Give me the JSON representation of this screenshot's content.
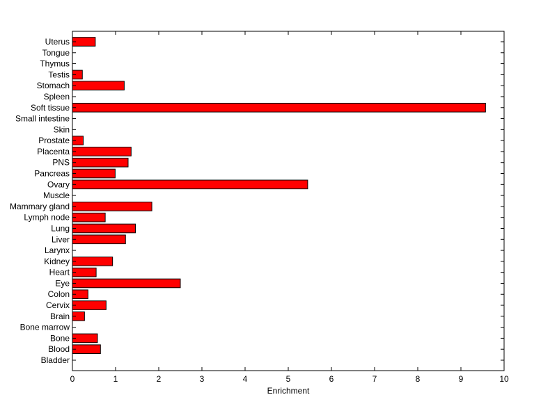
{
  "chart_data": {
    "type": "bar",
    "orientation": "horizontal",
    "title": "",
    "xlabel": "Enrichment",
    "ylabel": "",
    "xlim": [
      0,
      10
    ],
    "xticks": [
      0,
      1,
      2,
      3,
      4,
      5,
      6,
      7,
      8,
      9,
      10
    ],
    "grid": false,
    "bar_color": "#ff0000",
    "edge_color": "#000000",
    "categories": [
      "Bladder",
      "Blood",
      "Bone",
      "Bone marrow",
      "Brain",
      "Cervix",
      "Colon",
      "Eye",
      "Heart",
      "Kidney",
      "Larynx",
      "Liver",
      "Lung",
      "Lymph node",
      "Mammary gland",
      "Muscle",
      "Ovary",
      "Pancreas",
      "PNS",
      "Placenta",
      "Prostate",
      "Skin",
      "Small intestine",
      "Soft tissue",
      "Spleen",
      "Stomach",
      "Testis",
      "Thymus",
      "Tongue",
      "Uterus"
    ],
    "values": [
      0,
      0.65,
      0.58,
      0,
      0.28,
      0.78,
      0.36,
      2.5,
      0.55,
      0.93,
      0,
      1.23,
      1.46,
      0.76,
      1.84,
      0,
      5.45,
      0.99,
      1.29,
      1.36,
      0.25,
      0,
      0,
      9.57,
      0,
      1.2,
      0.23,
      0,
      0,
      0.53
    ]
  }
}
